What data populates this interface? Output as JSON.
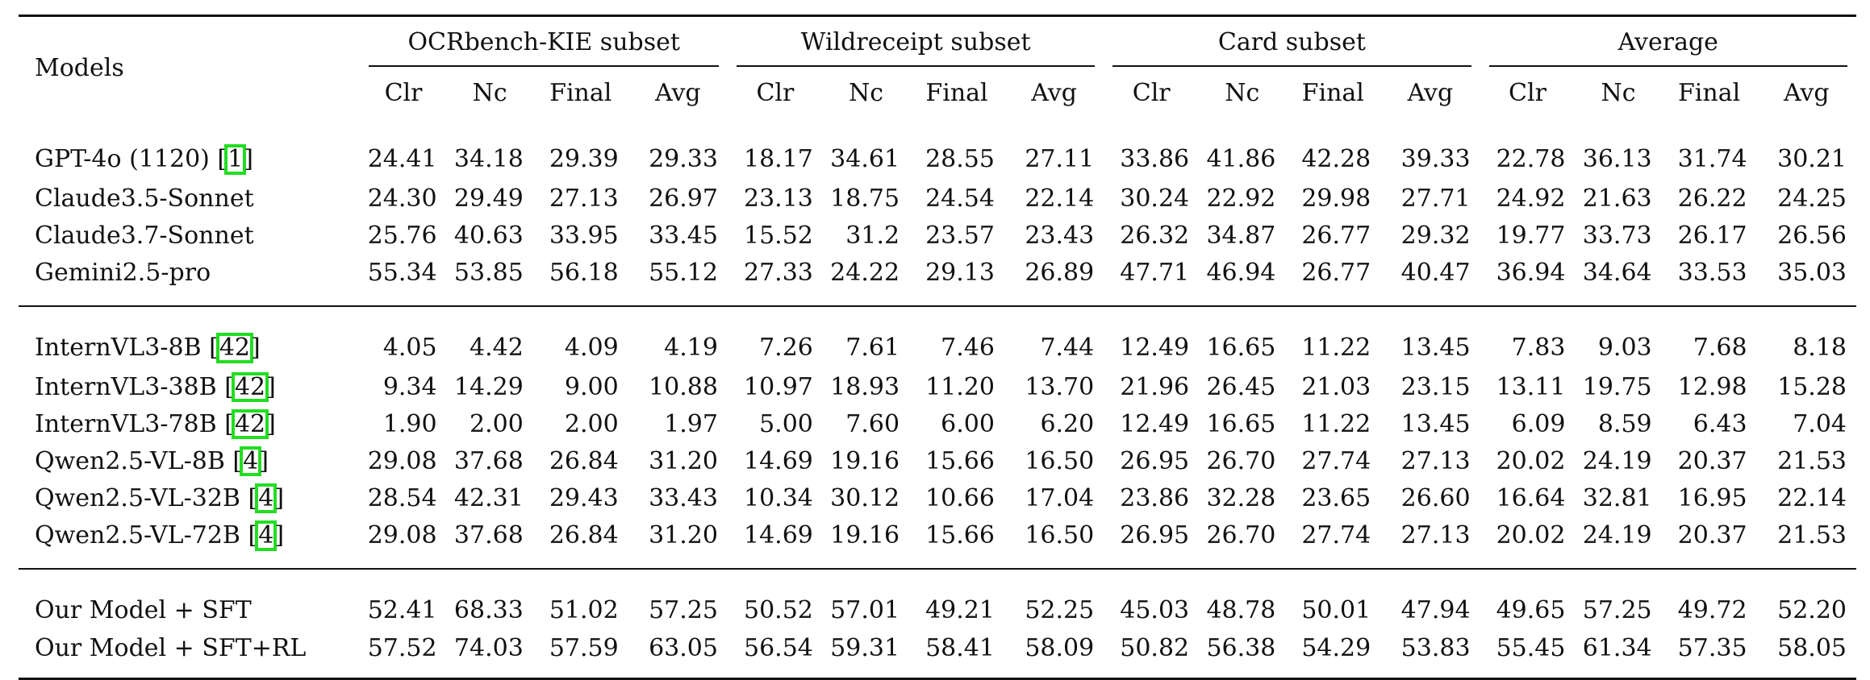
{
  "table": {
    "models_header": "Models",
    "groups": [
      "OCRbench-KIE subset",
      "Wildreceipt subset",
      "Card subset",
      "Average"
    ],
    "subcolumns": [
      "Clr",
      "Nc",
      "Final",
      "Avg"
    ],
    "rows": [
      {
        "model": "GPT-4o (1120)",
        "cite": "1",
        "values": [
          "24.41",
          "34.18",
          "29.39",
          "29.33",
          "18.17",
          "34.61",
          "28.55",
          "27.11",
          "33.86",
          "41.86",
          "42.28",
          "39.33",
          "22.78",
          "36.13",
          "31.74",
          "30.21"
        ]
      },
      {
        "model": "Claude3.5-Sonnet",
        "values": [
          "24.30",
          "29.49",
          "27.13",
          "26.97",
          "23.13",
          "18.75",
          "24.54",
          "22.14",
          "30.24",
          "22.92",
          "29.98",
          "27.71",
          "24.92",
          "21.63",
          "26.22",
          "24.25"
        ]
      },
      {
        "model": "Claude3.7-Sonnet",
        "values": [
          "25.76",
          "40.63",
          "33.95",
          "33.45",
          "15.52",
          "31.2",
          "23.57",
          "23.43",
          "26.32",
          "34.87",
          "26.77",
          "29.32",
          "19.77",
          "33.73",
          "26.17",
          "26.56"
        ]
      },
      {
        "model": "Gemini2.5-pro",
        "values": [
          "55.34",
          "53.85",
          "56.18",
          "55.12",
          "27.33",
          "24.22",
          "29.13",
          "26.89",
          "47.71",
          "46.94",
          "26.77",
          "40.47",
          "36.94",
          "34.64",
          "33.53",
          "35.03"
        ]
      },
      {
        "model": "InternVL3-8B",
        "cite": "42",
        "values": [
          "4.05",
          "4.42",
          "4.09",
          "4.19",
          "7.26",
          "7.61",
          "7.46",
          "7.44",
          "12.49",
          "16.65",
          "11.22",
          "13.45",
          "7.83",
          "9.03",
          "7.68",
          "8.18"
        ]
      },
      {
        "model": "InternVL3-38B",
        "cite": "42",
        "values": [
          "9.34",
          "14.29",
          "9.00",
          "10.88",
          "10.97",
          "18.93",
          "11.20",
          "13.70",
          "21.96",
          "26.45",
          "21.03",
          "23.15",
          "13.11",
          "19.75",
          "12.98",
          "15.28"
        ]
      },
      {
        "model": "InternVL3-78B",
        "cite": "42",
        "values": [
          "1.90",
          "2.00",
          "2.00",
          "1.97",
          "5.00",
          "7.60",
          "6.00",
          "6.20",
          "12.49",
          "16.65",
          "11.22",
          "13.45",
          "6.09",
          "8.59",
          "6.43",
          "7.04"
        ]
      },
      {
        "model": "Qwen2.5-VL-8B",
        "cite": "4",
        "values": [
          "29.08",
          "37.68",
          "26.84",
          "31.20",
          "14.69",
          "19.16",
          "15.66",
          "16.50",
          "26.95",
          "26.70",
          "27.74",
          "27.13",
          "20.02",
          "24.19",
          "20.37",
          "21.53"
        ]
      },
      {
        "model": "Qwen2.5-VL-32B",
        "cite": "4",
        "values": [
          "28.54",
          "42.31",
          "29.43",
          "33.43",
          "10.34",
          "30.12",
          "10.66",
          "17.04",
          "23.86",
          "32.28",
          "23.65",
          "26.60",
          "16.64",
          "32.81",
          "16.95",
          "22.14"
        ]
      },
      {
        "model": "Qwen2.5-VL-72B",
        "cite": "4",
        "values": [
          "29.08",
          "37.68",
          "26.84",
          "31.20",
          "14.69",
          "19.16",
          "15.66",
          "16.50",
          "26.95",
          "26.70",
          "27.74",
          "27.13",
          "20.02",
          "24.19",
          "20.37",
          "21.53"
        ]
      },
      {
        "model": "Our Model + SFT",
        "values": [
          "52.41",
          "68.33",
          "51.02",
          "57.25",
          "50.52",
          "57.01",
          "49.21",
          "52.25",
          "45.03",
          "48.78",
          "50.01",
          "47.94",
          "49.65",
          "57.25",
          "49.72",
          "52.20"
        ]
      },
      {
        "model": "Our Model + SFT+RL",
        "values": [
          "57.52",
          "74.03",
          "57.59",
          "63.05",
          "56.54",
          "59.31",
          "58.41",
          "58.09",
          "50.82",
          "56.38",
          "54.29",
          "53.83",
          "55.45",
          "61.34",
          "57.35",
          "58.05"
        ]
      }
    ]
  },
  "highlight_color": "#22dd22"
}
